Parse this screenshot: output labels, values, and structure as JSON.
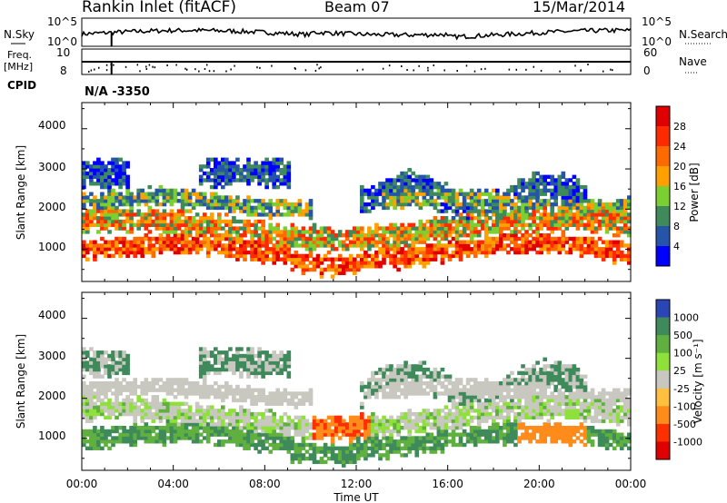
{
  "header": {
    "station": "Rankin Inlet (fitACF)",
    "beam": "Beam 07",
    "date": "15/Mar/2014"
  },
  "noise_panel": {
    "left_label": "N.Sky",
    "left_ticks": [
      "10^5",
      "10^0"
    ],
    "right_label": "N.Search",
    "right_ticks": [
      "10^5",
      "10^0"
    ]
  },
  "freq_panel": {
    "left_label_top": "Freq.",
    "left_label_bottom": "[MHz]",
    "left_ticks": [
      "10",
      "8"
    ],
    "right_label": "Nave",
    "right_ticks": [
      "60",
      "0"
    ]
  },
  "cpid": {
    "label": "CPID",
    "value": "N/A -3350"
  },
  "colors": {
    "power": [
      "#0000ff",
      "#2555a8",
      "#3f8a5a",
      "#7ccf30",
      "#ffa000",
      "#ff6a00",
      "#ff2a00",
      "#e00000"
    ],
    "velocity": [
      "#2a46b4",
      "#3f8a5a",
      "#60b040",
      "#8ee03a",
      "#c8c8c0",
      "#ffc040",
      "#ff8c1a",
      "#ff3000",
      "#e00000"
    ]
  },
  "chart_data": [
    {
      "type": "heatmap",
      "quantity": "power",
      "ylabel": "Slant Range [km]",
      "xlabel": "Time UT",
      "y_ticks": [
        "1000",
        "2000",
        "3000",
        "4000"
      ],
      "x_ticks": [
        "00:00",
        "04:00",
        "08:00",
        "12:00",
        "16:00",
        "20:00",
        "00:00"
      ],
      "xlim_hours": [
        0,
        24
      ],
      "ylim_km": [
        200,
        4650
      ],
      "colorbar": {
        "label": "Power [dB]",
        "ticks": [
          "4",
          "8",
          "12",
          "16",
          "20",
          "24",
          "28"
        ],
        "range": [
          0,
          32
        ]
      }
    },
    {
      "type": "heatmap",
      "quantity": "velocity",
      "ylabel": "Slant Range [km]",
      "xlabel": "Time UT",
      "y_ticks": [
        "1000",
        "2000",
        "3000",
        "4000"
      ],
      "x_ticks": [
        "00:00",
        "04:00",
        "08:00",
        "12:00",
        "16:00",
        "20:00",
        "00:00"
      ],
      "xlim_hours": [
        0,
        24
      ],
      "ylim_km": [
        200,
        4650
      ],
      "colorbar": {
        "label": "Velocity [m s⁻¹]",
        "ticks": [
          "1000",
          "500",
          "100",
          "25",
          "-25",
          "-100",
          "-500",
          "-1000"
        ]
      }
    }
  ]
}
